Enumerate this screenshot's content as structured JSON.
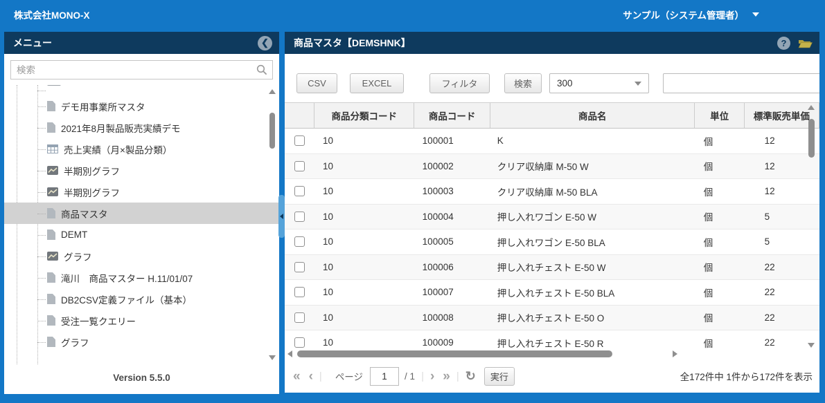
{
  "topbar": {
    "company": "株式会社MONO-X",
    "account": "サンプル（システム管理者）"
  },
  "sidebar": {
    "title": "メニュー",
    "collapse_glyph": "❮",
    "search_placeholder": "検索",
    "version": "Version 5.5.0",
    "items": [
      {
        "label": "",
        "icon": "bar",
        "clipped": true
      },
      {
        "label": "デモ用事業所マスタ",
        "icon": "doc"
      },
      {
        "label": "2021年8月製品販売実績デモ",
        "icon": "doc"
      },
      {
        "label": "売上実績（月×製品分類）",
        "icon": "table"
      },
      {
        "label": "半期別グラフ",
        "icon": "chart"
      },
      {
        "label": "半期別グラフ",
        "icon": "chart"
      },
      {
        "label": "商品マスタ",
        "icon": "doc",
        "selected": true
      },
      {
        "label": "DEMT",
        "icon": "doc"
      },
      {
        "label": "グラフ",
        "icon": "chart"
      },
      {
        "label": "滝川　商品マスター H.11/01/07",
        "icon": "doc"
      },
      {
        "label": "DB2CSV定義ファイル（基本）",
        "icon": "doc"
      },
      {
        "label": "受注一覧クエリー",
        "icon": "doc"
      },
      {
        "label": "グラフ",
        "icon": "doc"
      }
    ]
  },
  "main": {
    "title": "商品マスタ【DEMSHNK】",
    "help_glyph": "?",
    "toolbar": {
      "csv_label": "CSV",
      "excel_label": "EXCEL",
      "filter_label": "フィルタ",
      "search_label": "検索",
      "limit_value": "300",
      "keyword_value": ""
    },
    "table": {
      "columns": [
        "",
        "商品分類コード",
        "商品コード",
        "商品名",
        "単位",
        "標準販売単価"
      ],
      "rows": [
        [
          "10",
          "100001",
          "K",
          "個",
          "12"
        ],
        [
          "10",
          "100002",
          "クリア収納庫 M-50 W",
          "個",
          "12"
        ],
        [
          "10",
          "100003",
          "クリア収納庫 M-50 BLA",
          "個",
          "12"
        ],
        [
          "10",
          "100004",
          "押し入れワゴン E-50 W",
          "個",
          "5"
        ],
        [
          "10",
          "100005",
          "押し入れワゴン E-50 BLA",
          "個",
          "5"
        ],
        [
          "10",
          "100006",
          "押し入れチェスト E-50 W",
          "個",
          "22"
        ],
        [
          "10",
          "100007",
          "押し入れチェスト E-50 BLA",
          "個",
          "22"
        ],
        [
          "10",
          "100008",
          "押し入れチェスト E-50 O",
          "個",
          "22"
        ],
        [
          "10",
          "100009",
          "押し入れチェスト E-50 R",
          "個",
          "22"
        ]
      ]
    },
    "pagination": {
      "first": "«",
      "prev": "‹",
      "page_label": "ページ",
      "page_value": "1",
      "page_total": "/ 1",
      "next": "›",
      "last": "»",
      "refresh": "↻",
      "run_label": "実行",
      "summary": "全172件中 1件から172件を表示"
    }
  },
  "colors": {
    "topbar_blue": "#1377c6",
    "panel_header_navy": "#0e3a5e",
    "selected_item_gray": "#d2d2d2",
    "folder_icon_olive": "#b3a23f"
  }
}
